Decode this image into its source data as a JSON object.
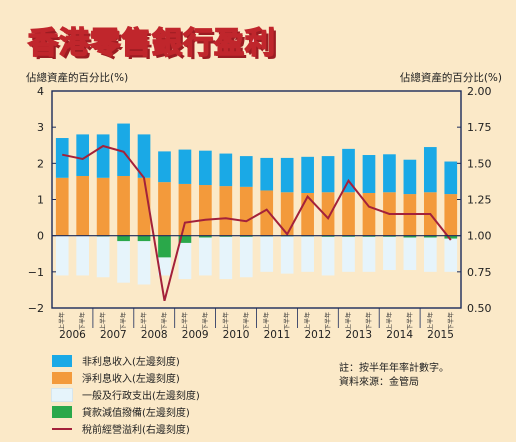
{
  "title": "香港零售銀行盈利",
  "left_axis_caption": "佔總資產的百分比(%)",
  "right_axis_caption": "佔總資產的百分比(%)",
  "notes": [
    "註：按半年年率計數字。",
    "資料來源：金管局"
  ],
  "colors": {
    "non_interest": "#1aa9e6",
    "net_interest": "#f39a3b",
    "opex": "#e6f4fb",
    "impairment": "#2aa84a",
    "profit_line": "#a3213a",
    "background": "#fbe9c8"
  },
  "chart_data": {
    "type": "bar",
    "stacked": true,
    "categories": [
      "2006上半年",
      "2006下半年",
      "2007上半年",
      "2007下半年",
      "2008上半年",
      "2008下半年",
      "2009上半年",
      "2009下半年",
      "2010上半年",
      "2010下半年",
      "2011上半年",
      "2011下半年",
      "2012上半年",
      "2012下半年",
      "2013上半年",
      "2013下半年",
      "2014上半年",
      "2014下半年",
      "2015上半年",
      "2015下半年"
    ],
    "half_labels": [
      "上半年",
      "下半年",
      "上半年",
      "下半年",
      "上半年",
      "下半年",
      "上半年",
      "下半年",
      "上半年",
      "下半年",
      "上半年",
      "下半年",
      "上半年",
      "下半年",
      "上半年",
      "下半年",
      "上半年",
      "下半年",
      "上半年",
      "下半年"
    ],
    "year_labels": [
      "2006",
      "2007",
      "2008",
      "2009",
      "2010",
      "2011",
      "2012",
      "2013",
      "2014",
      "2015"
    ],
    "series": [
      {
        "name": "非利息收入(左邊刻度)",
        "key": "non_interest",
        "axis": "left",
        "values": [
          1.1,
          1.15,
          1.2,
          1.45,
          1.2,
          0.85,
          0.95,
          0.95,
          0.9,
          0.85,
          0.9,
          0.95,
          1.0,
          1.0,
          1.2,
          1.05,
          1.05,
          0.95,
          1.25,
          0.9
        ]
      },
      {
        "name": "淨利息收入(左邊刻度)",
        "key": "net_interest",
        "axis": "left",
        "values": [
          1.6,
          1.65,
          1.6,
          1.65,
          1.6,
          1.48,
          1.43,
          1.4,
          1.37,
          1.35,
          1.25,
          1.2,
          1.18,
          1.2,
          1.2,
          1.18,
          1.2,
          1.15,
          1.2,
          1.15
        ]
      },
      {
        "name": "一般及行政支出(左邊刻度)",
        "key": "opex",
        "axis": "left",
        "values": [
          -1.1,
          -1.1,
          -1.15,
          -1.3,
          -1.35,
          -1.1,
          -1.2,
          -1.1,
          -1.2,
          -1.15,
          -1.0,
          -1.05,
          -1.0,
          -1.1,
          -1.0,
          -1.0,
          -0.95,
          -0.95,
          -1.0,
          -1.0
        ]
      },
      {
        "name": "貸款減值撥備(左邊刻度)",
        "key": "impairment",
        "axis": "left",
        "values": [
          0.0,
          0.0,
          -0.02,
          -0.15,
          -0.15,
          -0.6,
          -0.2,
          -0.05,
          -0.03,
          -0.03,
          -0.02,
          -0.02,
          -0.02,
          -0.03,
          -0.03,
          -0.03,
          -0.03,
          -0.05,
          -0.05,
          -0.08
        ]
      },
      {
        "name": "稅前經營溢利(右邊刻度)",
        "key": "profit_line",
        "axis": "right",
        "type": "line",
        "values": [
          1.56,
          1.53,
          1.62,
          1.58,
          1.4,
          0.55,
          1.09,
          1.11,
          1.12,
          1.1,
          1.18,
          1.01,
          1.27,
          1.12,
          1.38,
          1.2,
          1.15,
          1.15,
          1.15,
          0.97
        ]
      }
    ],
    "left_axis": {
      "ylim": [
        -2,
        4
      ],
      "ticks": [
        "−2",
        "−1",
        "0",
        "1",
        "2",
        "3",
        "4"
      ]
    },
    "right_axis": {
      "ylim": [
        0.5,
        2.0
      ],
      "ticks": [
        "0.50",
        "0.75",
        "1.00",
        "1.25",
        "1.50",
        "1.75",
        "2.00"
      ]
    },
    "legend_position": "bottom-left",
    "grid": false
  }
}
